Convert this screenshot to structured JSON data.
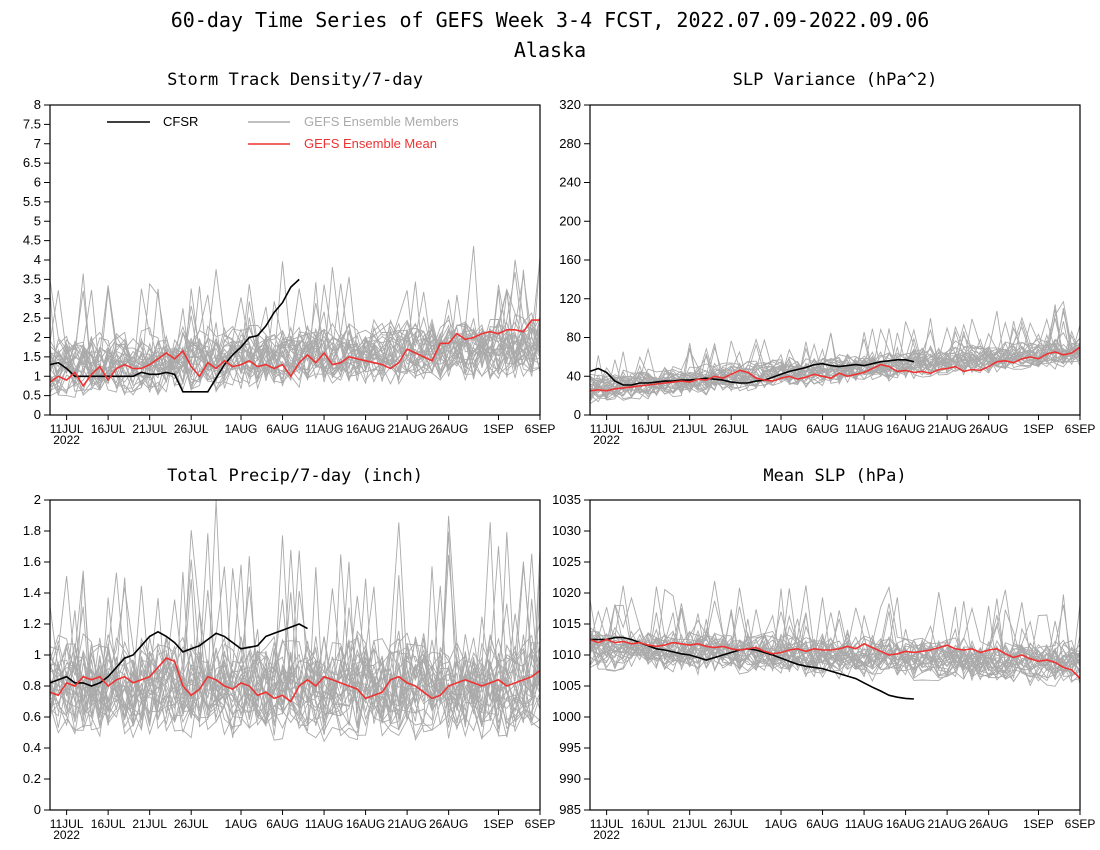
{
  "page": {
    "title_line1": "60-day Time Series of GEFS Week 3-4 FCST, 2022.07.09-2022.09.06",
    "title_line2": "Alaska"
  },
  "legend": {
    "cfsr": "CFSR",
    "members": "GEFS Ensemble Members",
    "mean": "GEFS Ensemble Mean"
  },
  "colors": {
    "cfsr": "#000000",
    "members": "#aaaaaa",
    "mean": "#ee3333"
  },
  "x_ticks": [
    {
      "day": 2,
      "label": "11JUL",
      "sub": "2022"
    },
    {
      "day": 7,
      "label": "16JUL"
    },
    {
      "day": 12,
      "label": "21JUL"
    },
    {
      "day": 17,
      "label": "26JUL"
    },
    {
      "day": 23,
      "label": "1AUG"
    },
    {
      "day": 28,
      "label": "6AUG"
    },
    {
      "day": 33,
      "label": "11AUG"
    },
    {
      "day": 38,
      "label": "16AUG"
    },
    {
      "day": 43,
      "label": "21AUG"
    },
    {
      "day": 48,
      "label": "26AUG"
    },
    {
      "day": 54,
      "label": "1SEP"
    },
    {
      "day": 59,
      "label": "6SEP"
    }
  ],
  "chart_data": [
    {
      "type": "line",
      "title": "Storm Track Density/7-day",
      "xlim": [
        0,
        59
      ],
      "ylim": [
        0,
        8
      ],
      "yticks": [
        "0",
        "0.5",
        "1",
        "1.5",
        "2",
        "2.5",
        "3",
        "3.5",
        "4",
        "4.5",
        "5",
        "5.5",
        "6",
        "6.5",
        "7",
        "7.5",
        "8"
      ],
      "show_legend": true,
      "members": {
        "center": 1.25,
        "trend": 0.55,
        "spread": 0.75,
        "count": 30
      },
      "series": [
        {
          "name": "CFSR",
          "x": [
            0,
            1,
            2,
            3,
            4,
            5,
            6,
            7,
            8,
            9,
            10,
            11,
            12,
            13,
            14,
            15,
            16,
            17,
            18,
            19,
            20,
            21,
            22,
            23,
            24,
            25,
            26,
            27,
            28,
            29,
            30
          ],
          "values": [
            1.3,
            1.35,
            1.2,
            1.0,
            1.0,
            1.0,
            1.0,
            1.0,
            1.0,
            1.0,
            1.0,
            1.1,
            1.05,
            1.05,
            1.1,
            1.05,
            0.6,
            0.6,
            0.6,
            0.6,
            0.95,
            1.3,
            1.55,
            1.75,
            2.0,
            2.05,
            2.3,
            2.65,
            2.9,
            3.3,
            3.5
          ]
        },
        {
          "name": "GEFS Ensemble Mean",
          "x": [
            0,
            1,
            2,
            3,
            4,
            5,
            6,
            7,
            8,
            9,
            10,
            11,
            12,
            13,
            14,
            15,
            16,
            17,
            18,
            19,
            20,
            21,
            22,
            23,
            24,
            25,
            26,
            27,
            28,
            29,
            30,
            31,
            32,
            33,
            34,
            35,
            36,
            37,
            38,
            39,
            40,
            41,
            42,
            43,
            44,
            45,
            46,
            47,
            48,
            49,
            50,
            51,
            52,
            53,
            54,
            55,
            56,
            57,
            58,
            59
          ],
          "values": [
            0.85,
            1.0,
            0.9,
            1.1,
            0.75,
            1.05,
            1.25,
            0.9,
            1.2,
            1.3,
            1.2,
            1.2,
            1.3,
            1.45,
            1.6,
            1.45,
            1.65,
            1.25,
            1.0,
            1.35,
            1.2,
            1.4,
            1.25,
            1.3,
            1.4,
            1.25,
            1.3,
            1.2,
            1.3,
            1.0,
            1.35,
            1.55,
            1.35,
            1.6,
            1.3,
            1.35,
            1.5,
            1.45,
            1.4,
            1.35,
            1.3,
            1.2,
            1.35,
            1.7,
            1.6,
            1.5,
            1.4,
            1.85,
            1.85,
            2.1,
            1.95,
            2.0,
            2.1,
            2.15,
            2.1,
            2.2,
            2.2,
            2.15,
            2.45,
            2.45
          ]
        }
      ]
    },
    {
      "type": "line",
      "title": "SLP Variance (hPa^2)",
      "xlim": [
        0,
        59
      ],
      "ylim": [
        0,
        320
      ],
      "yticks": [
        "0",
        "40",
        "80",
        "120",
        "160",
        "200",
        "240",
        "280",
        "320"
      ],
      "show_legend": false,
      "members": {
        "center": 28,
        "trend": 38,
        "spread": 14,
        "count": 30
      },
      "series": [
        {
          "name": "CFSR",
          "x": [
            0,
            1,
            2,
            3,
            4,
            5,
            6,
            7,
            8,
            9,
            10,
            11,
            12,
            13,
            14,
            15,
            16,
            17,
            18,
            19,
            20,
            21,
            22,
            23,
            24,
            25,
            26,
            27,
            28,
            29,
            30,
            31,
            32,
            33,
            34,
            35,
            36,
            37,
            38,
            39
          ],
          "values": [
            45,
            48,
            44,
            35,
            31,
            31,
            33,
            33,
            34,
            35,
            35,
            36,
            36,
            37,
            38,
            37,
            36,
            34,
            33,
            33,
            35,
            36,
            39,
            42,
            45,
            47,
            49,
            52,
            53,
            51,
            50,
            51,
            52,
            51,
            53,
            55,
            56,
            57,
            57,
            55
          ]
        },
        {
          "name": "GEFS Ensemble Mean",
          "x": [
            0,
            1,
            2,
            3,
            4,
            5,
            6,
            7,
            8,
            9,
            10,
            11,
            12,
            13,
            14,
            15,
            16,
            17,
            18,
            19,
            20,
            21,
            22,
            23,
            24,
            25,
            26,
            27,
            28,
            29,
            30,
            31,
            32,
            33,
            34,
            35,
            36,
            37,
            38,
            39,
            40,
            41,
            42,
            43,
            44,
            45,
            46,
            47,
            48,
            49,
            50,
            51,
            52,
            53,
            54,
            55,
            56,
            57,
            58,
            59
          ],
          "values": [
            25,
            26,
            25,
            27,
            28,
            29,
            30,
            31,
            32,
            33,
            34,
            35,
            34,
            37,
            36,
            40,
            38,
            42,
            46,
            44,
            38,
            36,
            35,
            38,
            40,
            37,
            39,
            42,
            40,
            38,
            43,
            40,
            42,
            44,
            48,
            52,
            50,
            45,
            46,
            44,
            45,
            43,
            47,
            48,
            50,
            45,
            47,
            46,
            50,
            55,
            56,
            54,
            58,
            60,
            58,
            63,
            65,
            62,
            64,
            70
          ]
        }
      ]
    },
    {
      "type": "line",
      "title": "Total Precip/7-day (inch)",
      "xlim": [
        0,
        59
      ],
      "ylim": [
        0,
        2
      ],
      "yticks": [
        "0",
        "0.2",
        "0.4",
        "0.6",
        "0.8",
        "1",
        "1.2",
        "1.4",
        "1.6",
        "1.8",
        "2"
      ],
      "show_legend": false,
      "members": {
        "center": 0.8,
        "trend": 0.0,
        "spread": 0.3,
        "count": 30
      },
      "series": [
        {
          "name": "CFSR",
          "x": [
            0,
            1,
            2,
            3,
            4,
            5,
            6,
            7,
            8,
            9,
            10,
            11,
            12,
            13,
            14,
            15,
            16,
            17,
            18,
            19,
            20,
            21,
            22,
            23,
            24,
            25,
            26,
            27,
            28,
            29,
            30,
            31
          ],
          "values": [
            0.82,
            0.84,
            0.86,
            0.82,
            0.82,
            0.8,
            0.82,
            0.86,
            0.92,
            0.98,
            1.0,
            1.06,
            1.12,
            1.15,
            1.12,
            1.08,
            1.02,
            1.04,
            1.06,
            1.1,
            1.14,
            1.12,
            1.08,
            1.04,
            1.05,
            1.06,
            1.12,
            1.14,
            1.16,
            1.18,
            1.2,
            1.17
          ]
        },
        {
          "name": "GEFS Ensemble Mean",
          "x": [
            0,
            1,
            2,
            3,
            4,
            5,
            6,
            7,
            8,
            9,
            10,
            11,
            12,
            13,
            14,
            15,
            16,
            17,
            18,
            19,
            20,
            21,
            22,
            23,
            24,
            25,
            26,
            27,
            28,
            29,
            30,
            31,
            32,
            33,
            34,
            35,
            36,
            37,
            38,
            39,
            40,
            41,
            42,
            43,
            44,
            45,
            46,
            47,
            48,
            49,
            50,
            51,
            52,
            53,
            54,
            55,
            56,
            57,
            58,
            59
          ],
          "values": [
            0.76,
            0.74,
            0.82,
            0.8,
            0.86,
            0.84,
            0.86,
            0.8,
            0.84,
            0.86,
            0.82,
            0.84,
            0.86,
            0.92,
            0.98,
            0.96,
            0.8,
            0.74,
            0.78,
            0.86,
            0.84,
            0.8,
            0.78,
            0.82,
            0.8,
            0.74,
            0.76,
            0.72,
            0.74,
            0.7,
            0.8,
            0.84,
            0.8,
            0.86,
            0.84,
            0.82,
            0.8,
            0.78,
            0.72,
            0.74,
            0.76,
            0.84,
            0.86,
            0.82,
            0.8,
            0.76,
            0.72,
            0.74,
            0.8,
            0.82,
            0.84,
            0.82,
            0.8,
            0.82,
            0.84,
            0.8,
            0.82,
            0.84,
            0.86,
            0.9
          ]
        }
      ]
    },
    {
      "type": "line",
      "title": "Mean SLP (hPa)",
      "xlim": [
        0,
        59
      ],
      "ylim": [
        985,
        1035
      ],
      "yticks": [
        "985",
        "990",
        "995",
        "1000",
        "1005",
        "1010",
        "1015",
        "1020",
        "1025",
        "1030",
        "1035"
      ],
      "show_legend": false,
      "members": {
        "center": 1011,
        "trend": -2.5,
        "spread": 3.2,
        "count": 30
      },
      "series": [
        {
          "name": "CFSR",
          "x": [
            0,
            1,
            2,
            3,
            4,
            5,
            6,
            7,
            8,
            9,
            10,
            11,
            12,
            13,
            14,
            15,
            16,
            17,
            18,
            19,
            20,
            21,
            22,
            23,
            24,
            25,
            26,
            27,
            28,
            29,
            30,
            31,
            32,
            33,
            34,
            35,
            36,
            37,
            38,
            39
          ],
          "values": [
            1012.5,
            1012.5,
            1012.5,
            1012.8,
            1012.8,
            1012.5,
            1012,
            1011.5,
            1011,
            1010.8,
            1010.5,
            1010.2,
            1010,
            1009.6,
            1009.2,
            1009.6,
            1010,
            1010.4,
            1010.8,
            1011,
            1010.8,
            1010.4,
            1010,
            1009.5,
            1009,
            1008.5,
            1008.2,
            1008,
            1007.8,
            1007.4,
            1007,
            1006.6,
            1006.2,
            1005.5,
            1004.8,
            1004.2,
            1003.5,
            1003.2,
            1003,
            1002.9
          ]
        },
        {
          "name": "GEFS Ensemble Mean",
          "x": [
            0,
            1,
            2,
            3,
            4,
            5,
            6,
            7,
            8,
            9,
            10,
            11,
            12,
            13,
            14,
            15,
            16,
            17,
            18,
            19,
            20,
            21,
            22,
            23,
            24,
            25,
            26,
            27,
            28,
            29,
            30,
            31,
            32,
            33,
            34,
            35,
            36,
            37,
            38,
            39,
            40,
            41,
            42,
            43,
            44,
            45,
            46,
            47,
            48,
            49,
            50,
            51,
            52,
            53,
            54,
            55,
            56,
            57,
            58,
            59
          ],
          "values": [
            1012.5,
            1012,
            1012.5,
            1012,
            1012.2,
            1011.8,
            1012,
            1011.6,
            1011.4,
            1011.6,
            1012,
            1011.8,
            1011.6,
            1011.8,
            1011.4,
            1011.2,
            1011.4,
            1011,
            1010.8,
            1011,
            1011.2,
            1010.6,
            1010.2,
            1010.4,
            1010.8,
            1011,
            1010.6,
            1011,
            1010.8,
            1010.8,
            1011,
            1011.4,
            1011,
            1011.8,
            1011.2,
            1010.6,
            1010,
            1010.2,
            1010.6,
            1010.4,
            1010.6,
            1010.8,
            1011.2,
            1011.6,
            1011,
            1010.8,
            1011,
            1010.4,
            1010.8,
            1011,
            1010.2,
            1009.6,
            1010,
            1009.4,
            1009,
            1009.2,
            1008.8,
            1008,
            1007.6,
            1006.2
          ]
        }
      ]
    }
  ]
}
